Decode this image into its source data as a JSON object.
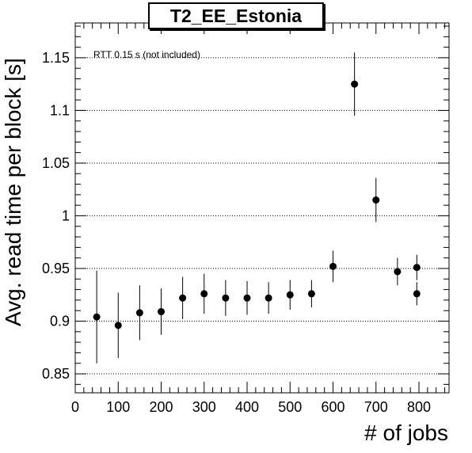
{
  "chart_data": {
    "type": "scatter",
    "title": "T2_EE_Estonia",
    "xlabel": "# of jobs",
    "ylabel": "Avg. read time per block [s]",
    "annotation": "RTT 0.15 s (not included)",
    "xlim": [
      0,
      870
    ],
    "ylim": [
      0.832,
      1.183
    ],
    "x_ticks": [
      0,
      100,
      200,
      300,
      400,
      500,
      600,
      700,
      800
    ],
    "x_tick_labels": [
      "0",
      "100",
      "200",
      "300",
      "400",
      "500",
      "600",
      "700",
      "800"
    ],
    "y_ticks": [
      0.85,
      0.9,
      0.95,
      1.0,
      1.05,
      1.1,
      1.15
    ],
    "y_tick_labels": [
      "0.85",
      "0.9",
      "0.95",
      "1",
      "1.05",
      "1.1",
      "1.15"
    ],
    "grid": "horizontal dotted at major y ticks",
    "marker_color": "#000000",
    "points": [
      {
        "x": 50,
        "y": 0.904,
        "err": 0.044
      },
      {
        "x": 100,
        "y": 0.896,
        "err": 0.031
      },
      {
        "x": 150,
        "y": 0.908,
        "err": 0.026
      },
      {
        "x": 200,
        "y": 0.909,
        "err": 0.022
      },
      {
        "x": 250,
        "y": 0.922,
        "err": 0.02
      },
      {
        "x": 300,
        "y": 0.926,
        "err": 0.019
      },
      {
        "x": 350,
        "y": 0.922,
        "err": 0.017
      },
      {
        "x": 400,
        "y": 0.922,
        "err": 0.016
      },
      {
        "x": 450,
        "y": 0.922,
        "err": 0.015
      },
      {
        "x": 500,
        "y": 0.925,
        "err": 0.014
      },
      {
        "x": 550,
        "y": 0.926,
        "err": 0.013
      },
      {
        "x": 600,
        "y": 0.952,
        "err": 0.015
      },
      {
        "x": 650,
        "y": 1.125,
        "err": 0.03
      },
      {
        "x": 700,
        "y": 1.015,
        "err": 0.021
      },
      {
        "x": 750,
        "y": 0.947,
        "err": 0.013
      },
      {
        "x": 795,
        "y": 0.951,
        "err": 0.012
      },
      {
        "x": 795,
        "y": 0.926,
        "err": 0.011
      }
    ]
  }
}
